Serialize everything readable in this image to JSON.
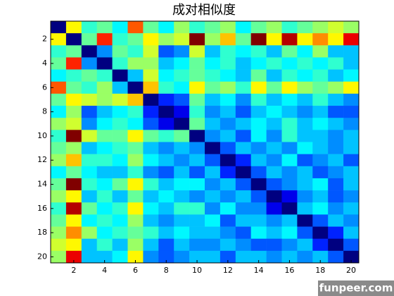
{
  "chart_data": {
    "type": "heatmap",
    "title": "成对相似度",
    "watermark": "funpeer.com",
    "colormap": "jet",
    "xlim": [
      0.5,
      20.5
    ],
    "ylim": [
      0.5,
      20.5
    ],
    "y_reversed": true,
    "xticks": [
      2,
      4,
      6,
      8,
      10,
      12,
      14,
      16,
      18,
      20
    ],
    "yticks": [
      2,
      4,
      6,
      8,
      10,
      12,
      14,
      16,
      18,
      20
    ],
    "values": [
      [
        0,
        0.6,
        0.4,
        0.45,
        0.35,
        0.75,
        0.45,
        0.35,
        0.5,
        0.4,
        0.45,
        0.5,
        0.35,
        0.45,
        0.5,
        0.4,
        0.45,
        0.5,
        0.55,
        0.5
      ],
      [
        0.6,
        0,
        0.45,
        0.8,
        0.4,
        0.45,
        0.6,
        0.5,
        0.55,
        0.95,
        0.5,
        0.65,
        0.45,
        0.95,
        0.6,
        0.9,
        0.6,
        0.7,
        0.6,
        0.85
      ],
      [
        0.4,
        0.45,
        0,
        0.25,
        0.45,
        0.4,
        0.55,
        0.2,
        0.25,
        0.55,
        0.3,
        0.4,
        0.35,
        0.4,
        0.3,
        0.45,
        0.35,
        0.5,
        0.3,
        0.3
      ],
      [
        0.45,
        0.8,
        0.25,
        0,
        0.4,
        0.5,
        0.5,
        0.3,
        0.35,
        0.45,
        0.35,
        0.4,
        0.3,
        0.35,
        0.4,
        0.35,
        0.4,
        0.35,
        0.4,
        0.3
      ],
      [
        0.35,
        0.4,
        0.45,
        0.4,
        0,
        0.3,
        0.55,
        0.35,
        0.4,
        0.45,
        0.4,
        0.35,
        0.3,
        0.45,
        0.3,
        0.4,
        0.35,
        0.4,
        0.3,
        0.35
      ],
      [
        0.75,
        0.45,
        0.4,
        0.5,
        0.3,
        0,
        0.65,
        0.4,
        0.35,
        0.6,
        0.45,
        0.5,
        0.4,
        0.6,
        0.45,
        0.6,
        0.5,
        0.45,
        0.5,
        0.6
      ],
      [
        0.45,
        0.6,
        0.55,
        0.5,
        0.55,
        0.65,
        0,
        0.15,
        0.2,
        0.45,
        0.3,
        0.35,
        0.25,
        0.4,
        0.3,
        0.35,
        0.3,
        0.4,
        0.3,
        0.25
      ],
      [
        0.35,
        0.5,
        0.2,
        0.3,
        0.35,
        0.4,
        0.15,
        0,
        0.1,
        0.4,
        0.25,
        0.3,
        0.2,
        0.3,
        0.35,
        0.3,
        0.25,
        0.3,
        0.2,
        0.2
      ],
      [
        0.5,
        0.55,
        0.25,
        0.35,
        0.4,
        0.35,
        0.2,
        0.1,
        0,
        0.45,
        0.3,
        0.25,
        0.3,
        0.35,
        0.3,
        0.4,
        0.3,
        0.35,
        0.3,
        0.25
      ],
      [
        0.4,
        0.95,
        0.55,
        0.45,
        0.45,
        0.6,
        0.45,
        0.4,
        0.45,
        0,
        0.25,
        0.3,
        0.2,
        0.35,
        0.25,
        0.4,
        0.3,
        0.3,
        0.25,
        0.3
      ],
      [
        0.45,
        0.5,
        0.3,
        0.35,
        0.4,
        0.45,
        0.3,
        0.25,
        0.3,
        0.25,
        0,
        0.2,
        0.3,
        0.25,
        0.3,
        0.25,
        0.35,
        0.3,
        0.25,
        0.3
      ],
      [
        0.5,
        0.65,
        0.4,
        0.4,
        0.35,
        0.5,
        0.35,
        0.3,
        0.25,
        0.3,
        0.2,
        0,
        0.15,
        0.3,
        0.25,
        0.35,
        0.2,
        0.25,
        0.3,
        0.2
      ],
      [
        0.35,
        0.45,
        0.35,
        0.3,
        0.3,
        0.4,
        0.25,
        0.2,
        0.3,
        0.2,
        0.3,
        0.15,
        0,
        0.2,
        0.3,
        0.25,
        0.3,
        0.2,
        0.25,
        0.3
      ],
      [
        0.45,
        0.95,
        0.4,
        0.35,
        0.45,
        0.6,
        0.4,
        0.3,
        0.35,
        0.35,
        0.25,
        0.3,
        0.2,
        0,
        0.2,
        0.25,
        0.3,
        0.35,
        0.2,
        0.3
      ],
      [
        0.5,
        0.6,
        0.3,
        0.4,
        0.3,
        0.45,
        0.3,
        0.35,
        0.3,
        0.25,
        0.3,
        0.25,
        0.3,
        0.2,
        0,
        0.1,
        0.25,
        0.3,
        0.2,
        0.25
      ],
      [
        0.4,
        0.9,
        0.45,
        0.35,
        0.4,
        0.6,
        0.35,
        0.3,
        0.4,
        0.4,
        0.25,
        0.35,
        0.25,
        0.25,
        0.1,
        0,
        0.3,
        0.35,
        0.25,
        0.3
      ],
      [
        0.45,
        0.6,
        0.35,
        0.4,
        0.35,
        0.5,
        0.3,
        0.25,
        0.3,
        0.3,
        0.35,
        0.2,
        0.3,
        0.3,
        0.25,
        0.3,
        0,
        0.2,
        0.3,
        0.25
      ],
      [
        0.5,
        0.7,
        0.5,
        0.35,
        0.4,
        0.45,
        0.4,
        0.3,
        0.35,
        0.3,
        0.3,
        0.25,
        0.2,
        0.35,
        0.3,
        0.35,
        0.2,
        0,
        0.15,
        0.3
      ],
      [
        0.55,
        0.6,
        0.3,
        0.4,
        0.3,
        0.5,
        0.3,
        0.2,
        0.3,
        0.25,
        0.25,
        0.3,
        0.25,
        0.2,
        0.2,
        0.25,
        0.3,
        0.15,
        0,
        0.2
      ],
      [
        0.5,
        0.85,
        0.3,
        0.3,
        0.35,
        0.6,
        0.25,
        0.2,
        0.25,
        0.3,
        0.3,
        0.2,
        0.3,
        0.3,
        0.25,
        0.3,
        0.25,
        0.3,
        0.2,
        0
      ]
    ]
  }
}
